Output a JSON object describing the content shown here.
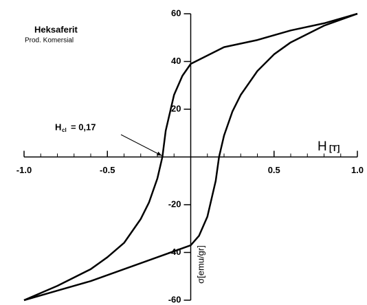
{
  "chart_data": {
    "type": "line",
    "annotations": {
      "title": "Heksaferit",
      "subtitle": "Prod. Komersial",
      "coercivity": {
        "symbol": "H",
        "subscript": "cl",
        "text": "= 0,17",
        "x": -0.17,
        "y": 0
      }
    },
    "xlabel": "H",
    "xunit": "[T]",
    "ylabel": "σ[emu/gr]",
    "xlim": [
      -1.0,
      1.0
    ],
    "ylim": [
      -60,
      60
    ],
    "xticks": [
      {
        "value": -1.0,
        "label": "-1.0"
      },
      {
        "value": -0.5,
        "label": "-0.5"
      },
      {
        "value": 0.5,
        "label": "0.5"
      },
      {
        "value": 1.0,
        "label": "1.0"
      }
    ],
    "xminorticks": [
      -0.9,
      -0.8,
      -0.7,
      -0.6,
      -0.4,
      -0.3,
      -0.2,
      -0.1,
      0.1,
      0.2,
      0.3,
      0.4,
      0.6,
      0.7,
      0.8,
      0.9
    ],
    "yticks": [
      -60,
      -40,
      -20,
      20,
      40,
      60
    ],
    "series": [
      {
        "color": "#000000",
        "x": [
          1.0,
          0.8,
          0.6,
          0.4,
          0.2,
          0,
          -0.05,
          -0.1,
          -0.15,
          -0.17,
          -0.2,
          -0.25,
          -0.3,
          -0.4,
          -0.5,
          -0.6,
          -0.8,
          -1.0
        ],
        "values": [
          60,
          56,
          53,
          49,
          46,
          39,
          34,
          26,
          11,
          0,
          -9,
          -19,
          -26,
          -36,
          -42,
          -47,
          -54,
          -60
        ]
      },
      {
        "color": "#000000",
        "x": [
          -1.0,
          -0.8,
          -0.6,
          -0.4,
          -0.2,
          0,
          0.05,
          0.1,
          0.15,
          0.17,
          0.2,
          0.25,
          0.3,
          0.4,
          0.5,
          0.6,
          0.8,
          1.0
        ],
        "values": [
          -60,
          -56,
          -52,
          -47,
          -42,
          -37,
          -33,
          -25,
          -10,
          0,
          9,
          19,
          26,
          36,
          43,
          48,
          55,
          60
        ]
      }
    ]
  }
}
